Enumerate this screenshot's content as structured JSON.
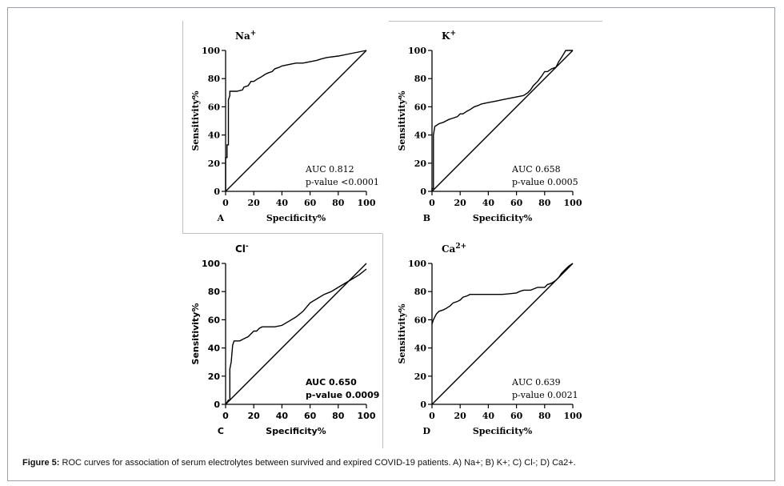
{
  "caption": {
    "label": "Figure 5:",
    "text": " ROC curves for association of serum electrolytes between survived and expired COVID-19 patients. A) Na+; B) K+; C) Cl-; D) Ca2+."
  },
  "chart_data": [
    {
      "type": "line",
      "panel": "A",
      "title": "Na",
      "title_sup": "+",
      "xlabel": "Specificity%",
      "ylabel": "Sensitivity%",
      "xlim": [
        0,
        100
      ],
      "ylim": [
        0,
        100
      ],
      "xticks": [
        "0",
        "20",
        "40",
        "60",
        "80",
        "100"
      ],
      "yticks": [
        "0",
        "20",
        "40",
        "60",
        "80",
        "100"
      ],
      "auc_text": "AUC 0.812",
      "p_text": "p-value <0.0001",
      "curve": {
        "x": [
          0,
          0,
          1,
          1,
          2,
          2,
          3,
          3,
          5,
          8,
          12,
          13,
          16,
          18,
          20,
          23,
          25,
          28,
          30,
          33,
          35,
          38,
          40,
          45,
          50,
          55,
          60,
          65,
          68,
          72,
          80,
          90,
          100
        ],
        "y": [
          0,
          24,
          24,
          33,
          33,
          65,
          68,
          71,
          71,
          71,
          72,
          74,
          75,
          78,
          78,
          80,
          81,
          83,
          84,
          85,
          87,
          88,
          89,
          90,
          91,
          91,
          92,
          93,
          94,
          95,
          96,
          98,
          100
        ]
      },
      "reference": {
        "x": [
          0,
          100
        ],
        "y": [
          0,
          100
        ]
      }
    },
    {
      "type": "line",
      "panel": "B",
      "title": "K",
      "title_sup": "+",
      "xlabel": "Specificity%",
      "ylabel": "Sensitivity%",
      "xlim": [
        0,
        100
      ],
      "ylim": [
        0,
        100
      ],
      "xticks": [
        "0",
        "20",
        "40",
        "60",
        "80",
        "100"
      ],
      "yticks": [
        "0",
        "20",
        "40",
        "60",
        "80",
        "100"
      ],
      "auc_text": "AUC 0.658",
      "p_text": "p-value 0.0005",
      "curve": {
        "x": [
          0,
          0,
          1,
          1,
          2,
          5,
          8,
          10,
          12,
          15,
          18,
          20,
          22,
          25,
          27,
          30,
          33,
          35,
          40,
          45,
          50,
          55,
          60,
          65,
          68,
          70,
          72,
          75,
          78,
          80,
          82,
          85,
          88,
          90,
          92,
          95,
          100
        ],
        "y": [
          0,
          2,
          2,
          40,
          46,
          48,
          49,
          50,
          51,
          52,
          53,
          55,
          55,
          57,
          58,
          60,
          61,
          62,
          63,
          64,
          65,
          66,
          67,
          68,
          70,
          72,
          75,
          78,
          82,
          85,
          85,
          87,
          88,
          92,
          95,
          100,
          100
        ]
      },
      "reference": {
        "x": [
          0,
          100
        ],
        "y": [
          0,
          100
        ]
      }
    },
    {
      "type": "line",
      "panel": "C",
      "title": "Cl",
      "title_sup": "-",
      "xlabel": "Specificity%",
      "ylabel": "Sensitivity%",
      "xlim": [
        0,
        100
      ],
      "ylim": [
        0,
        100
      ],
      "xticks": [
        "0",
        "20",
        "40",
        "60",
        "80",
        "100"
      ],
      "yticks": [
        "0",
        "20",
        "40",
        "60",
        "80",
        "100"
      ],
      "auc_text": "AUC 0.650",
      "p_text": "p-value 0.0009",
      "curve": {
        "x": [
          0,
          2,
          3,
          3,
          4,
          5,
          6,
          8,
          10,
          12,
          14,
          16,
          18,
          20,
          22,
          24,
          26,
          30,
          35,
          40,
          45,
          50,
          55,
          60,
          65,
          70,
          75,
          80,
          85,
          90,
          95,
          100
        ],
        "y": [
          0,
          3,
          3,
          25,
          30,
          42,
          45,
          45,
          45,
          46,
          47,
          48,
          50,
          52,
          52,
          54,
          55,
          55,
          55,
          56,
          59,
          62,
          66,
          72,
          75,
          78,
          80,
          83,
          86,
          89,
          92,
          96
        ]
      },
      "reference": {
        "x": [
          0,
          100
        ],
        "y": [
          0,
          100
        ]
      }
    },
    {
      "type": "line",
      "panel": "D",
      "title": "Ca",
      "title_sup": "2+",
      "xlabel": "Specificity%",
      "ylabel": "Sensitivity%",
      "xlim": [
        0,
        100
      ],
      "ylim": [
        0,
        100
      ],
      "xticks": [
        "0",
        "20",
        "40",
        "60",
        "80",
        "100"
      ],
      "yticks": [
        "0",
        "20",
        "40",
        "60",
        "80",
        "100"
      ],
      "auc_text": "AUC 0.639",
      "p_text": "p-value 0.0021",
      "curve": {
        "x": [
          0,
          1,
          2,
          3,
          5,
          8,
          10,
          13,
          15,
          18,
          20,
          22,
          25,
          27,
          30,
          40,
          50,
          60,
          62,
          65,
          70,
          75,
          80,
          82,
          85,
          88,
          90,
          92,
          95,
          97,
          100
        ],
        "y": [
          57,
          60,
          62,
          64,
          66,
          67,
          68,
          70,
          72,
          73,
          74,
          76,
          77,
          78,
          78,
          78,
          78,
          79,
          80,
          81,
          81,
          83,
          83,
          85,
          86,
          88,
          90,
          93,
          96,
          98,
          100
        ]
      },
      "reference": {
        "x": [
          0,
          100
        ],
        "y": [
          0,
          100
        ]
      }
    }
  ]
}
